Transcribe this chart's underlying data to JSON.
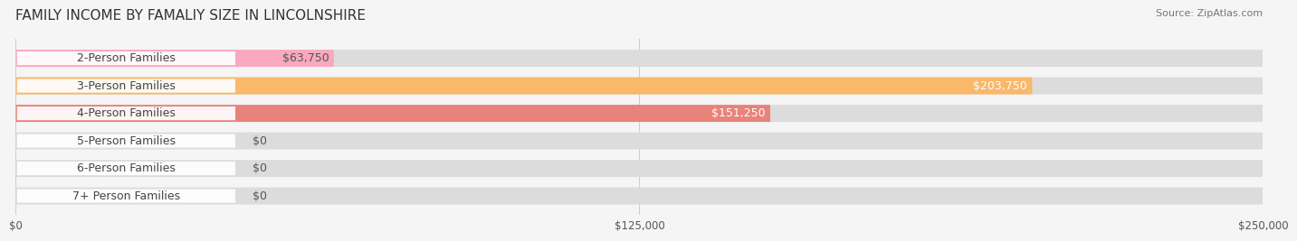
{
  "title": "FAMILY INCOME BY FAMALIY SIZE IN LINCOLNSHIRE",
  "source": "Source: ZipAtlas.com",
  "categories": [
    "2-Person Families",
    "3-Person Families",
    "4-Person Families",
    "5-Person Families",
    "6-Person Families",
    "7+ Person Families"
  ],
  "values": [
    63750,
    203750,
    151250,
    0,
    0,
    0
  ],
  "bar_colors": [
    "#F9A8C0",
    "#F9B86A",
    "#E8837A",
    "#A8C0E8",
    "#C4A8D8",
    "#7EC8C0"
  ],
  "label_colors": [
    "#555555",
    "#ffffff",
    "#ffffff",
    "#555555",
    "#555555",
    "#555555"
  ],
  "bg_color": "#f5f5f5",
  "xlim": [
    0,
    250000
  ],
  "xticks": [
    0,
    125000,
    250000
  ],
  "xtick_labels": [
    "$0",
    "$125,000",
    "$250,000"
  ],
  "title_fontsize": 11,
  "source_fontsize": 8,
  "bar_height": 0.62,
  "bar_label_fontsize": 9,
  "category_fontsize": 9
}
